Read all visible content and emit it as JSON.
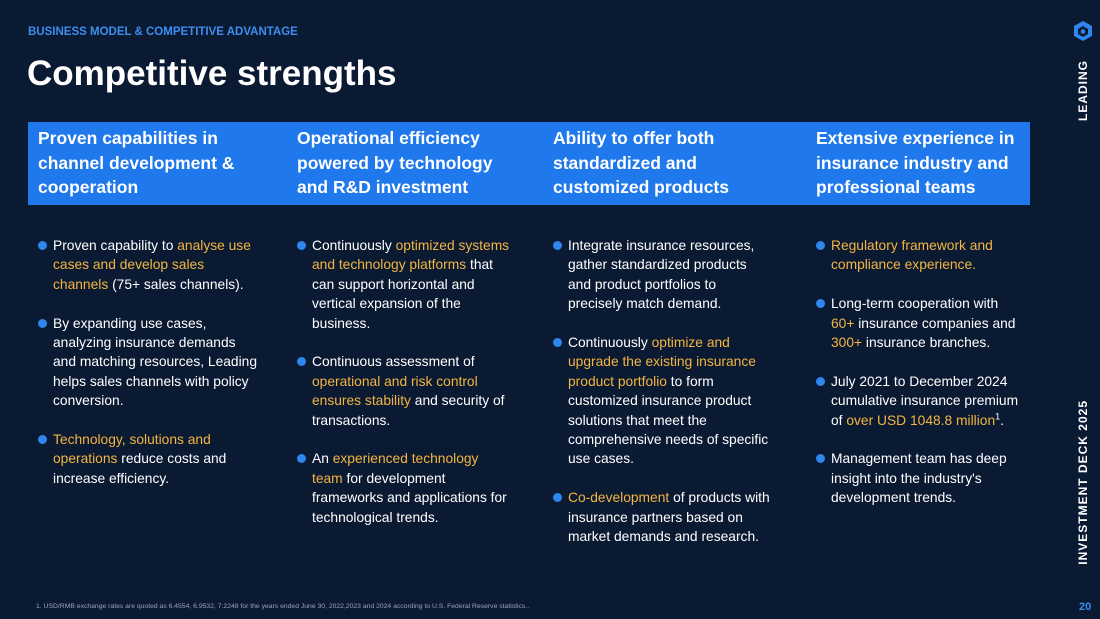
{
  "header": {
    "section": "BUSINESS MODEL & COMPETITIVE ADVANTAGE",
    "title": "Competitive strengths"
  },
  "columns": [
    {
      "header": "Proven capabilities in channel development & cooperation",
      "bullets": [
        [
          "Proven capability to ",
          {
            "text": "analyse use cases and develop sales channels",
            "accent": true
          },
          " (75+ sales channels)."
        ],
        [
          "By expanding use cases, analyzing insurance demands and matching resources, Leading helps sales channels with policy conversion."
        ],
        [
          {
            "text": "Technology, solutions and operations",
            "accent": true
          },
          " reduce costs and increase efficiency."
        ]
      ]
    },
    {
      "header": "Operational efficiency powered by technology and R&D investment",
      "bullets": [
        [
          "Continuously ",
          {
            "text": "optimized systems and technology platforms",
            "accent": true
          },
          " that can support horizontal and vertical expansion of the business."
        ],
        [
          "Continuous assessment of ",
          {
            "text": "operational and risk control ensures stability",
            "accent": true
          },
          " and security of transactions."
        ],
        [
          "An ",
          {
            "text": "experienced technology team",
            "accent": true
          },
          " for development frameworks and applications for technological trends."
        ]
      ]
    },
    {
      "header": "Ability to offer both standardized and customized products",
      "bullets": [
        [
          "Integrate insurance resources, gather standardized products and product portfolios to precisely match demand."
        ],
        [
          "Continuously ",
          {
            "text": "optimize and upgrade the existing insurance product portfolio",
            "accent": true
          },
          " to form customized insurance product solutions that meet the comprehensive needs of specific use cases."
        ],
        [
          {
            "text": "Co-development",
            "accent": true
          },
          " of products with insurance partners based on market demands and research."
        ]
      ]
    },
    {
      "header": "Extensive experience in insurance industry and professional teams",
      "bullets": [
        [
          {
            "text": "Regulatory framework and compliance experience.",
            "accent": true
          }
        ],
        [
          "Long-term cooperation with ",
          {
            "text": "60+",
            "accent": true
          },
          " insurance companies and ",
          {
            "text": "300+",
            "accent": true
          },
          " insurance branches."
        ],
        [
          "July 2021 to December 2024 cumulative insurance premium of ",
          {
            "text": "over USD 1048.8 million",
            "accent": true
          },
          {
            "text": "1",
            "superscript": true
          },
          "."
        ],
        [
          "Management team has deep insight into the industry's development trends."
        ]
      ]
    }
  ],
  "sidebar": {
    "brand": "LEADING",
    "deck": "INVESTMENT DECK 2025",
    "page": "20"
  },
  "footnote": "1. USD/RMB exchange rates are quoted as 6.4554, 6.9532, 7.2248 for the years ended June 30, 2022,2023 and 2024 according to U.S. Federal Reserve statistics.."
}
